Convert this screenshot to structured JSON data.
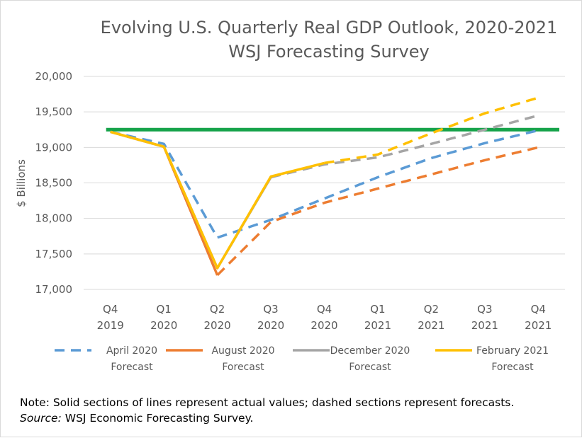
{
  "chart_data": {
    "type": "line",
    "title": "Evolving U.S. Quarterly Real GDP Outlook, 2020-2021",
    "subtitle": "WSJ Forecasting Survey",
    "ylabel": "$ Billions",
    "xlabel": "",
    "ylim": [
      17000,
      20000
    ],
    "yticks": [
      17000,
      17500,
      18000,
      18500,
      19000,
      19500,
      20000
    ],
    "ytick_labels": [
      "17,000",
      "17,500",
      "18,000",
      "18,500",
      "19,000",
      "19,500",
      "20,000"
    ],
    "grid": true,
    "categories": [
      {
        "q": "Q4",
        "y": "2019"
      },
      {
        "q": "Q1",
        "y": "2020"
      },
      {
        "q": "Q2",
        "y": "2020"
      },
      {
        "q": "Q3",
        "y": "2020"
      },
      {
        "q": "Q4",
        "y": "2020"
      },
      {
        "q": "Q1",
        "y": "2021"
      },
      {
        "q": "Q2",
        "y": "2021"
      },
      {
        "q": "Q3",
        "y": "2021"
      },
      {
        "q": "Q4",
        "y": "2021"
      }
    ],
    "reference_line": {
      "value": 19250,
      "color": "#16a34a"
    },
    "series": [
      {
        "name_lines": [
          "April 2020",
          "Forecast"
        ],
        "color": "#5b9bd5",
        "values": [
          19220,
          19050,
          17730,
          17980,
          18280,
          18580,
          18850,
          19060,
          19240
        ],
        "actual_until_index": 0
      },
      {
        "name_lines": [
          "August 2020",
          "Forecast"
        ],
        "color": "#ed7d31",
        "values": [
          19220,
          19010,
          17200,
          17950,
          18220,
          18420,
          18620,
          18820,
          19000
        ],
        "actual_until_index": 2
      },
      {
        "name_lines": [
          "December 2020",
          "Forecast"
        ],
        "color": "#a5a5a5",
        "values": [
          19220,
          19010,
          17300,
          18580,
          18760,
          18860,
          19050,
          19250,
          19450
        ],
        "actual_until_index": 3
      },
      {
        "name_lines": [
          "February 2021",
          "Forecast"
        ],
        "color": "#ffc000",
        "values": [
          19220,
          19010,
          17300,
          18590,
          18780,
          18900,
          19200,
          19480,
          19700
        ],
        "actual_until_index": 4
      }
    ]
  },
  "note": {
    "text": "Note: Solid sections of lines represent  actual values; dashed sections represent forecasts.",
    "source_label": "Source:",
    "source_text": " WSJ Economic Forecasting Survey."
  }
}
